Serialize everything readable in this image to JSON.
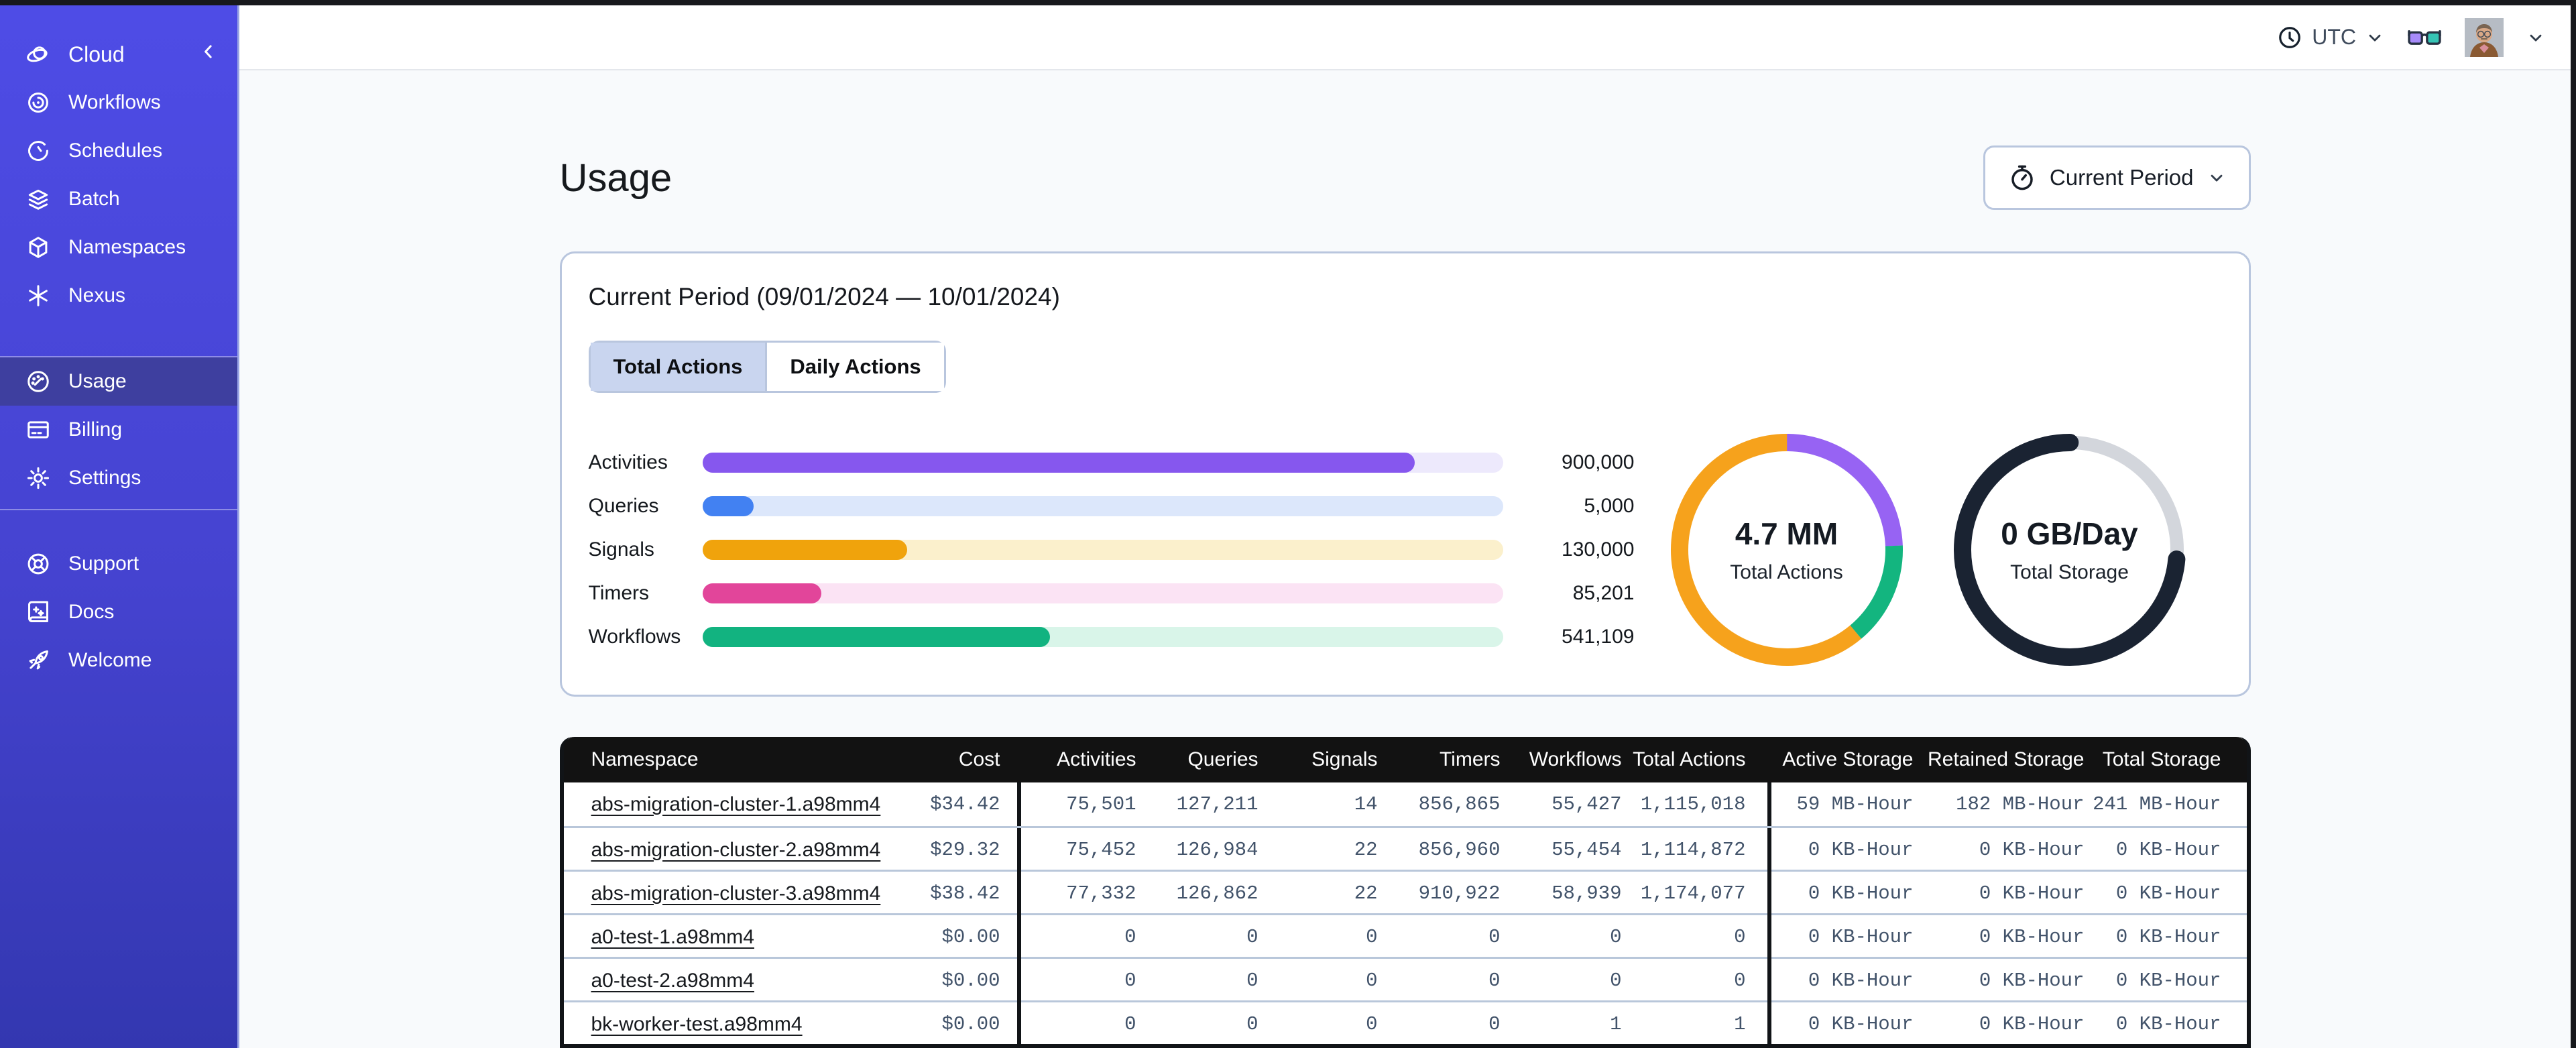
{
  "sidebar": {
    "brand": {
      "label": "Cloud",
      "icon": "temporal-logo-icon",
      "collapse_icon": "chevron-left-icon"
    },
    "nav_main": [
      {
        "label": "Workflows",
        "icon": "workflows-icon"
      },
      {
        "label": "Schedules",
        "icon": "schedules-icon"
      },
      {
        "label": "Batch",
        "icon": "batch-icon"
      },
      {
        "label": "Namespaces",
        "icon": "namespaces-icon"
      },
      {
        "label": "Nexus",
        "icon": "nexus-icon"
      }
    ],
    "nav_account": [
      {
        "label": "Usage",
        "icon": "usage-icon",
        "active": true
      },
      {
        "label": "Billing",
        "icon": "billing-icon"
      },
      {
        "label": "Settings",
        "icon": "settings-icon"
      }
    ],
    "nav_help": [
      {
        "label": "Support",
        "icon": "support-icon"
      },
      {
        "label": "Docs",
        "icon": "docs-icon"
      },
      {
        "label": "Welcome",
        "icon": "welcome-icon"
      }
    ]
  },
  "topbar": {
    "timezone": "UTC"
  },
  "page": {
    "title": "Usage",
    "period_button_label": "Current Period"
  },
  "usage_card": {
    "title": "Current Period (09/01/2024 — 10/01/2024)",
    "tabs": [
      {
        "label": "Total Actions",
        "active": true
      },
      {
        "label": "Daily Actions",
        "active": false
      }
    ]
  },
  "chart_data": [
    {
      "type": "bar",
      "orientation": "horizontal",
      "categories": [
        "Activities",
        "Queries",
        "Signals",
        "Timers",
        "Workflows"
      ],
      "values": [
        900000,
        5000,
        130000,
        85201,
        541109
      ],
      "display_values": [
        "900,000",
        "5,000",
        "130,000",
        "85,201",
        "541,109"
      ],
      "fractions": [
        0.89,
        0.064,
        0.256,
        0.149,
        0.434
      ],
      "colors": [
        "#8657ee",
        "#4281f2",
        "#f0a30c",
        "#e2459a",
        "#12b380"
      ],
      "track_colors": [
        "#ede9fc",
        "#dce7fb",
        "#fbf0cc",
        "#fbe3f4",
        "#d9f5e9"
      ]
    },
    {
      "type": "donut",
      "center_value": "4.7 MM",
      "center_label": "Total Actions",
      "linecap": "butt",
      "segments": [
        {
          "color": "#9763f3",
          "start_pct": 0,
          "pct": 24.4
        },
        {
          "color": "#13b57f",
          "start_pct": 24.4,
          "pct": 14.5
        },
        {
          "color": "#f6a21c",
          "start_pct": 38.9,
          "pct": 61.1
        }
      ]
    },
    {
      "type": "donut",
      "center_value": "0 GB/Day",
      "center_label": "Total Storage",
      "linecap": "round",
      "track_color": "#d3d6dc",
      "segments": [
        {
          "color": "#1a2332",
          "start_pct": 26.4,
          "pct": 73.6
        }
      ]
    }
  ],
  "table": {
    "headers": [
      "Namespace",
      "Cost",
      "Activities",
      "Queries",
      "Signals",
      "Timers",
      "Workflows",
      "Total Actions",
      "Active Storage",
      "Retained Storage",
      "Total Storage"
    ],
    "rows": [
      [
        "abs-migration-cluster-1.a98mm4",
        "$34.42",
        "75,501",
        "127,211",
        "14",
        "856,865",
        "55,427",
        "1,115,018",
        "59 MB-Hour",
        "182 MB-Hour",
        "241 MB-Hour"
      ],
      [
        "abs-migration-cluster-2.a98mm4",
        "$29.32",
        "75,452",
        "126,984",
        "22",
        "856,960",
        "55,454",
        "1,114,872",
        "0 KB-Hour",
        "0 KB-Hour",
        "0 KB-Hour"
      ],
      [
        "abs-migration-cluster-3.a98mm4",
        "$38.42",
        "77,332",
        "126,862",
        "22",
        "910,922",
        "58,939",
        "1,174,077",
        "0 KB-Hour",
        "0 KB-Hour",
        "0 KB-Hour"
      ],
      [
        "a0-test-1.a98mm4",
        "$0.00",
        "0",
        "0",
        "0",
        "0",
        "0",
        "0",
        "0 KB-Hour",
        "0 KB-Hour",
        "0 KB-Hour"
      ],
      [
        "a0-test-2.a98mm4",
        "$0.00",
        "0",
        "0",
        "0",
        "0",
        "0",
        "0",
        "0 KB-Hour",
        "0 KB-Hour",
        "0 KB-Hour"
      ],
      [
        "bk-worker-test.a98mm4",
        "$0.00",
        "0",
        "0",
        "0",
        "0",
        "1",
        "1",
        "0 KB-Hour",
        "0 KB-Hour",
        "0 KB-Hour"
      ]
    ]
  }
}
